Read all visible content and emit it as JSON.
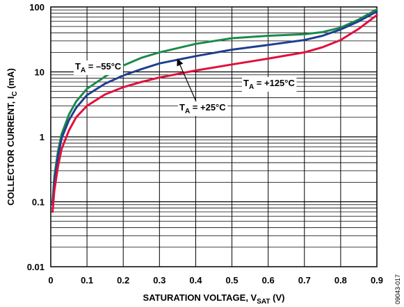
{
  "chart_data": {
    "type": "line",
    "xlabel": {
      "main": "SATURATION VOLTAGE, V",
      "sub": "SAT",
      "unit": " (V)"
    },
    "ylabel": {
      "main": "COLLECTOR CURRENT, I",
      "sub": "C",
      "unit": " (mA)"
    },
    "xlim": [
      0,
      0.9
    ],
    "ylim": [
      0.01,
      100
    ],
    "y_scale": "log",
    "grid": true,
    "x_ticks": [
      "0",
      "0.1",
      "0.2",
      "0.3",
      "0.4",
      "0.5",
      "0.6",
      "0.7",
      "0.8",
      "0.9"
    ],
    "y_ticks": [
      "0.01",
      "0.1",
      "1",
      "10",
      "100"
    ],
    "series": [
      {
        "name": {
          "pre": "T",
          "sub": "A",
          "post": " = –55°C"
        },
        "color": "#1b8a4c",
        "points": [
          [
            0.005,
            0.1
          ],
          [
            0.01,
            0.25
          ],
          [
            0.02,
            0.6
          ],
          [
            0.03,
            1.1
          ],
          [
            0.05,
            2.2
          ],
          [
            0.07,
            3.5
          ],
          [
            0.1,
            5.5
          ],
          [
            0.15,
            8.5
          ],
          [
            0.2,
            12.5
          ],
          [
            0.25,
            16.5
          ],
          [
            0.3,
            20
          ],
          [
            0.4,
            27
          ],
          [
            0.5,
            33
          ],
          [
            0.6,
            36
          ],
          [
            0.7,
            38
          ],
          [
            0.75,
            41
          ],
          [
            0.8,
            48
          ],
          [
            0.85,
            64
          ],
          [
            0.9,
            92
          ]
        ]
      },
      {
        "name": {
          "pre": "T",
          "sub": "A",
          "post": " = +25°C"
        },
        "color": "#1f3f8f",
        "points": [
          [
            0.005,
            0.09
          ],
          [
            0.01,
            0.2
          ],
          [
            0.02,
            0.5
          ],
          [
            0.03,
            0.95
          ],
          [
            0.05,
            1.8
          ],
          [
            0.07,
            2.8
          ],
          [
            0.1,
            4.4
          ],
          [
            0.15,
            6.6
          ],
          [
            0.2,
            8.8
          ],
          [
            0.25,
            11
          ],
          [
            0.3,
            13.5
          ],
          [
            0.4,
            17.5
          ],
          [
            0.5,
            22
          ],
          [
            0.6,
            26
          ],
          [
            0.7,
            31
          ],
          [
            0.75,
            36
          ],
          [
            0.8,
            45
          ],
          [
            0.85,
            60
          ],
          [
            0.9,
            85
          ]
        ]
      },
      {
        "name": {
          "pre": "T",
          "sub": "A",
          "post": " = +125°C"
        },
        "color": "#e0103c",
        "points": [
          [
            0.005,
            0.07
          ],
          [
            0.01,
            0.15
          ],
          [
            0.02,
            0.35
          ],
          [
            0.03,
            0.65
          ],
          [
            0.05,
            1.25
          ],
          [
            0.07,
            2
          ],
          [
            0.1,
            3
          ],
          [
            0.15,
            4.5
          ],
          [
            0.2,
            5.8
          ],
          [
            0.25,
            7
          ],
          [
            0.3,
            8.2
          ],
          [
            0.4,
            10.5
          ],
          [
            0.5,
            13
          ],
          [
            0.6,
            16
          ],
          [
            0.7,
            20
          ],
          [
            0.75,
            24
          ],
          [
            0.8,
            31
          ],
          [
            0.85,
            46
          ],
          [
            0.9,
            75
          ]
        ]
      }
    ],
    "figure_id": "09043-017"
  }
}
